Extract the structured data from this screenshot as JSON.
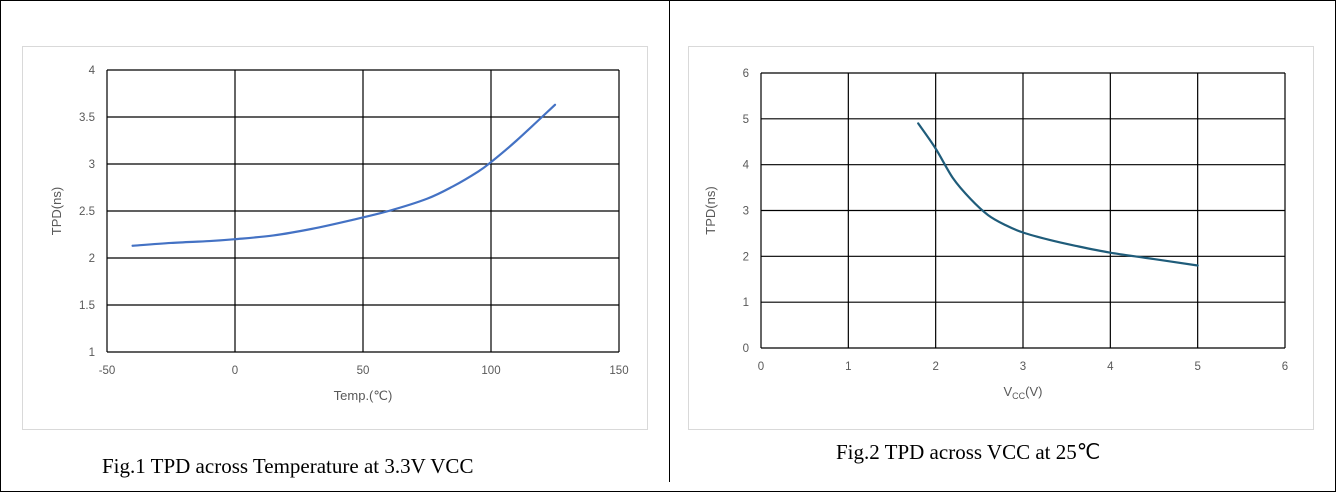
{
  "chart_data": [
    {
      "type": "line",
      "title": "",
      "xlabel": "Temp.(℃)",
      "ylabel": "TPD(ns)",
      "xlim": [
        -50,
        150
      ],
      "ylim": [
        1,
        4
      ],
      "xticks": [
        -50,
        0,
        50,
        100,
        150
      ],
      "yticks": [
        1,
        1.5,
        2,
        2.5,
        3,
        3.5,
        4
      ],
      "grid": true,
      "series": [
        {
          "color": "#4472c4",
          "x": [
            -40,
            -25,
            -10,
            0,
            15,
            30,
            45,
            60,
            75,
            85,
            95,
            100,
            110,
            125
          ],
          "y": [
            2.13,
            2.16,
            2.18,
            2.2,
            2.24,
            2.31,
            2.4,
            2.5,
            2.63,
            2.76,
            2.92,
            3.02,
            3.25,
            3.63
          ]
        }
      ],
      "caption": "Fig.1 TPD across Temperature at 3.3V VCC"
    },
    {
      "type": "line",
      "title": "",
      "xlabel": "VCC(V)",
      "xlabel_main": "V",
      "xlabel_sub": "CC",
      "xlabel_suffix": "(V)",
      "ylabel": "TPD(ns)",
      "xlim": [
        0,
        6
      ],
      "ylim": [
        0,
        6
      ],
      "xticks": [
        0,
        1,
        2,
        3,
        4,
        5,
        6
      ],
      "yticks": [
        0,
        1,
        2,
        3,
        4,
        5,
        6
      ],
      "grid": true,
      "series": [
        {
          "color": "#1f5c7a",
          "x": [
            1.8,
            2.0,
            2.2,
            2.4,
            2.6,
            2.8,
            3.0,
            3.3,
            3.6,
            4.0,
            4.5,
            5.0
          ],
          "y": [
            4.9,
            4.35,
            3.7,
            3.25,
            2.9,
            2.68,
            2.52,
            2.36,
            2.23,
            2.08,
            1.94,
            1.8
          ]
        }
      ],
      "caption": "Fig.2 TPD across VCC at 25℃"
    }
  ]
}
